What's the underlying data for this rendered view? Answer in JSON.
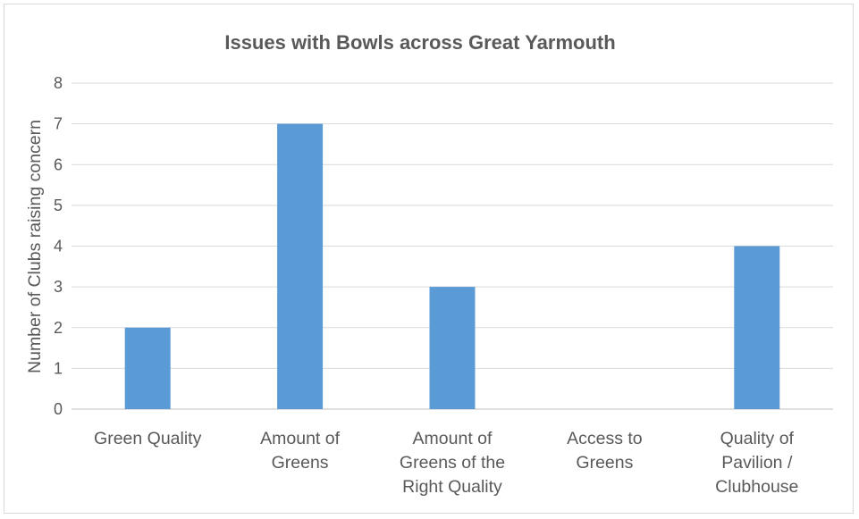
{
  "chart_data": {
    "type": "bar",
    "title": "Issues with Bowls across Great Yarmouth",
    "xlabel": "",
    "ylabel": "Number of Clubs raising concern",
    "categories": [
      [
        "Green Quality"
      ],
      [
        "Amount of",
        "Greens"
      ],
      [
        "Amount of",
        "Greens of the",
        "Right Quality"
      ],
      [
        "Access to",
        "Greens"
      ],
      [
        "Quality of",
        "Pavilion /",
        "Clubhouse"
      ]
    ],
    "values": [
      2,
      7,
      3,
      0,
      4
    ],
    "ylim": [
      0,
      8
    ],
    "yticks": [
      "0",
      "1",
      "2",
      "3",
      "4",
      "5",
      "6",
      "7",
      "8"
    ],
    "grid": true,
    "legend": "none",
    "bar_color": "#5b9bd5"
  }
}
